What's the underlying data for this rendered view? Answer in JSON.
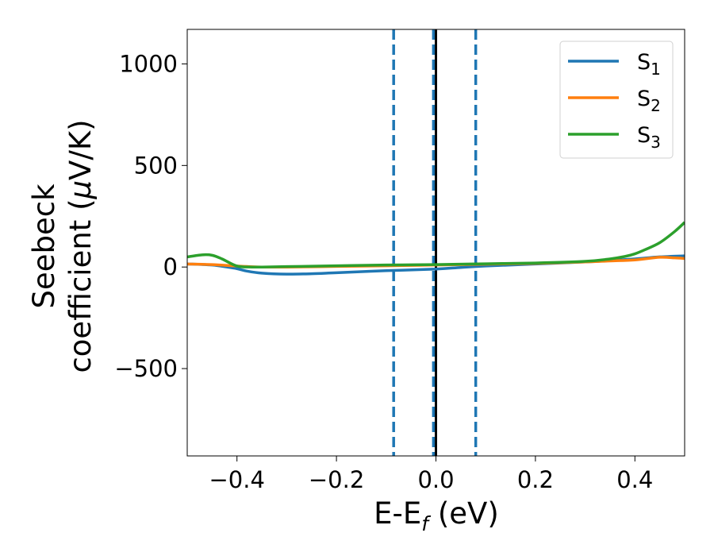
{
  "chart_data": {
    "type": "line",
    "xlabel": "E-E",
    "xlabel_sub": "f",
    "xlabel_unit": " (eV)",
    "ylabel_line1": "Seebeck",
    "ylabel_line2": "coefficient  (",
    "ylabel_mu": "μ",
    "ylabel_unit": "V/K)",
    "xlim": [
      -0.5,
      0.5
    ],
    "ylim": [
      -930,
      1170
    ],
    "xticks": [
      -0.4,
      -0.2,
      0.0,
      0.2,
      0.4
    ],
    "xtick_labels": [
      "−0.4",
      "−0.2",
      "0.0",
      "0.2",
      "0.4"
    ],
    "yticks": [
      -500,
      0,
      500,
      1000
    ],
    "ytick_labels": [
      "−500",
      "0",
      "500",
      "1000"
    ],
    "grid": false,
    "legend_position": "top-right",
    "vertical_lines": [
      {
        "x": -0.085,
        "style": "dashed",
        "color": "#1f77b4"
      },
      {
        "x": -0.005,
        "style": "dashed",
        "color": "#1f77b4"
      },
      {
        "x": 0.0,
        "style": "solid",
        "color": "#000000"
      },
      {
        "x": 0.08,
        "style": "dashed",
        "color": "#1f77b4"
      }
    ],
    "series": [
      {
        "name": "S",
        "sub": "1",
        "color": "#1f77b4",
        "x": [
          -0.5,
          -0.45,
          -0.42,
          -0.4,
          -0.38,
          -0.35,
          -0.3,
          -0.25,
          -0.2,
          -0.1,
          0.0,
          0.05,
          0.1,
          0.2,
          0.3,
          0.35,
          0.4,
          0.45,
          0.5
        ],
        "y": [
          15,
          10,
          0,
          -8,
          -20,
          -30,
          -35,
          -33,
          -28,
          -18,
          -10,
          -2,
          5,
          15,
          25,
          32,
          40,
          50,
          55
        ]
      },
      {
        "name": "S",
        "sub": "2",
        "color": "#ff7f0e",
        "x": [
          -0.5,
          -0.45,
          -0.4,
          -0.35,
          -0.3,
          -0.2,
          -0.1,
          0.0,
          0.1,
          0.2,
          0.3,
          0.35,
          0.4,
          0.45,
          0.48,
          0.5
        ],
        "y": [
          15,
          12,
          5,
          0,
          0,
          3,
          6,
          10,
          14,
          18,
          25,
          30,
          35,
          48,
          45,
          42
        ]
      },
      {
        "name": "S",
        "sub": "3",
        "color": "#2ca02c",
        "x": [
          -0.5,
          -0.47,
          -0.45,
          -0.43,
          -0.4,
          -0.37,
          -0.35,
          -0.3,
          -0.2,
          -0.1,
          0.0,
          0.1,
          0.2,
          0.3,
          0.35,
          0.38,
          0.4,
          0.42,
          0.45,
          0.48,
          0.5
        ],
        "y": [
          50,
          60,
          58,
          40,
          5,
          0,
          0,
          2,
          6,
          10,
          12,
          16,
          20,
          28,
          40,
          52,
          65,
          85,
          120,
          175,
          220
        ]
      }
    ]
  }
}
